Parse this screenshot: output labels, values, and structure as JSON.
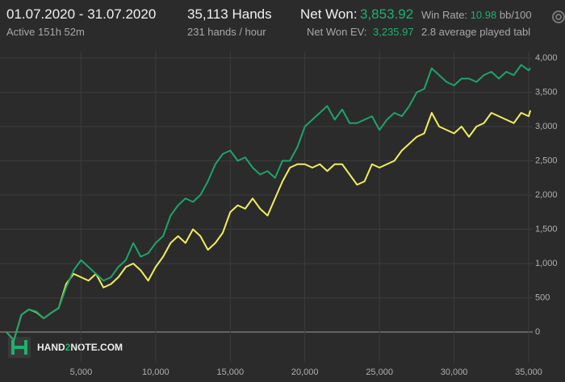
{
  "header": {
    "date_range": "01.07.2020 - 31.07.2020",
    "active": "Active 151h 52m",
    "hands": "35,113 Hands",
    "hands_per_hour": "231 hands / hour",
    "net_won_label": "Net Won:",
    "net_won_value": "3,853.92",
    "net_won_ev_label": "Net Won  EV:",
    "net_won_ev_value": "3,235.97",
    "win_rate_label": "Win Rate:",
    "win_rate_value": "10.98",
    "win_rate_unit": "bb/100",
    "tables": "2.8 average played tabl"
  },
  "watermark": [
    "HAND",
    "2",
    "NOTE.COM"
  ],
  "chart_data": {
    "type": "line",
    "x": [
      0,
      500,
      1000,
      1500,
      2000,
      2500,
      3000,
      3500,
      4000,
      4500,
      5000,
      5500,
      6000,
      6500,
      7000,
      7500,
      8000,
      8500,
      9000,
      9500,
      10000,
      10500,
      11000,
      11500,
      12000,
      12500,
      13000,
      13500,
      14000,
      14500,
      15000,
      15500,
      16000,
      16500,
      17000,
      17500,
      18000,
      18500,
      19000,
      19500,
      20000,
      20500,
      21000,
      21500,
      22000,
      22500,
      23000,
      23500,
      24000,
      24500,
      25000,
      25500,
      26000,
      26500,
      27000,
      27500,
      28000,
      28500,
      29000,
      29500,
      30000,
      30500,
      31000,
      31500,
      32000,
      32500,
      33000,
      33500,
      34000,
      34500,
      35000,
      35113
    ],
    "series": [
      {
        "name": "Net Won",
        "color": "#1fa36b",
        "values": [
          0,
          -120,
          250,
          330,
          300,
          200,
          280,
          350,
          650,
          900,
          1050,
          950,
          850,
          750,
          800,
          950,
          1050,
          1300,
          1100,
          1150,
          1300,
          1400,
          1700,
          1850,
          1950,
          1900,
          2000,
          2200,
          2450,
          2600,
          2650,
          2500,
          2550,
          2400,
          2300,
          2350,
          2250,
          2500,
          2500,
          2700,
          3000,
          3100,
          3200,
          3300,
          3100,
          3250,
          3050,
          3050,
          3100,
          3150,
          2950,
          3100,
          3200,
          3150,
          3300,
          3500,
          3550,
          3850,
          3750,
          3650,
          3600,
          3700,
          3700,
          3650,
          3750,
          3800,
          3700,
          3800,
          3750,
          3900,
          3820,
          3853.92
        ]
      },
      {
        "name": "Net Won EV",
        "color": "#f2ee5c",
        "values": [
          0,
          -120,
          250,
          330,
          290,
          200,
          280,
          350,
          700,
          850,
          800,
          750,
          850,
          650,
          700,
          800,
          950,
          1000,
          900,
          750,
          950,
          1100,
          1300,
          1400,
          1300,
          1500,
          1400,
          1200,
          1300,
          1450,
          1750,
          1850,
          1800,
          1950,
          1800,
          1700,
          1950,
          2200,
          2400,
          2450,
          2450,
          2400,
          2450,
          2350,
          2450,
          2450,
          2300,
          2150,
          2200,
          2450,
          2400,
          2450,
          2500,
          2650,
          2750,
          2850,
          2900,
          3200,
          3000,
          2950,
          2900,
          3000,
          2850,
          3000,
          3050,
          3200,
          3150,
          3100,
          3050,
          3200,
          3150,
          3235.97
        ]
      }
    ],
    "xlim": [
      0,
      35000
    ],
    "ylim": [
      -350,
      4100
    ],
    "xticks": [
      {
        "value": 5000,
        "label": "5,000"
      },
      {
        "value": 10000,
        "label": "10,000"
      },
      {
        "value": 15000,
        "label": "15,000"
      },
      {
        "value": 20000,
        "label": "20,000"
      },
      {
        "value": 25000,
        "label": "25,000"
      },
      {
        "value": 30000,
        "label": "30,000"
      },
      {
        "value": 35000,
        "label": "35,000"
      }
    ],
    "yticks": [
      0,
      500,
      {
        "value": 1000,
        "label": "1,000"
      },
      {
        "value": 1500,
        "label": "1,500"
      },
      {
        "value": 2000,
        "label": "2,000"
      },
      {
        "value": 2500,
        "label": "2,500"
      },
      {
        "value": 3000,
        "label": "3,000"
      },
      {
        "value": 3500,
        "label": "3,500"
      },
      {
        "value": 4000,
        "label": "4,000"
      }
    ],
    "grid": true
  }
}
